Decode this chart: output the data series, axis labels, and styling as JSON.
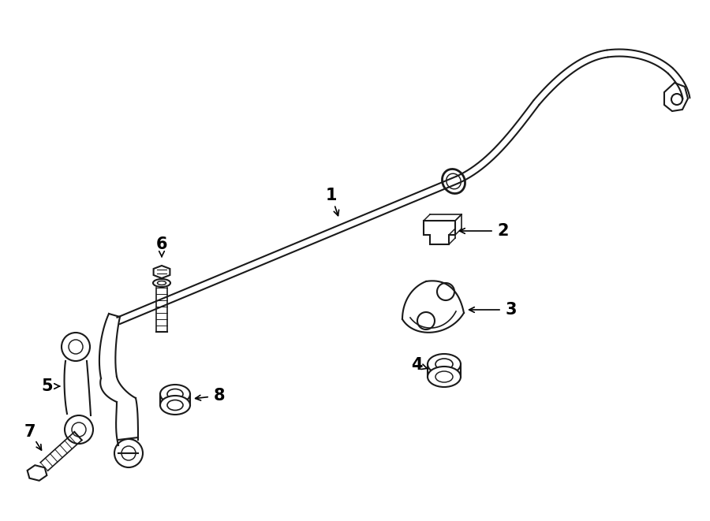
{
  "background_color": "#ffffff",
  "line_color": "#1a1a1a",
  "line_width": 1.5,
  "fig_width": 9.0,
  "fig_height": 6.61,
  "dpi": 100
}
